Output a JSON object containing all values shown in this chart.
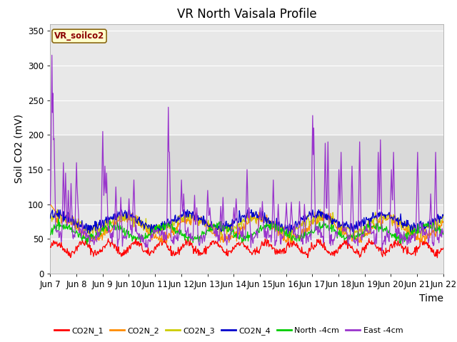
{
  "title": "VR North Vaisala Profile",
  "ylabel": "Soil CO2 (mV)",
  "xlabel": "Time",
  "annotation_text": "VR_soilco2",
  "ylim": [
    0,
    360
  ],
  "yticks": [
    0,
    50,
    100,
    150,
    200,
    250,
    300,
    350
  ],
  "x_labels": [
    "Jun 7",
    "Jun 8",
    "Jun 9",
    "Jun 10",
    "Jun 11",
    "Jun 12",
    "Jun 13",
    "Jun 14",
    "Jun 15",
    "Jun 16",
    "Jun 17",
    "Jun 18",
    "Jun 19",
    "Jun 20",
    "Jun 21",
    "Jun 22"
  ],
  "series_colors": {
    "CO2N_1": "#ff0000",
    "CO2N_2": "#ff8c00",
    "CO2N_3": "#cccc00",
    "CO2N_4": "#0000cc",
    "North_4cm": "#00cc00",
    "East_4cm": "#9933cc"
  },
  "legend_labels": [
    "CO2N_1",
    "CO2N_2",
    "CO2N_3",
    "CO2N_4",
    "North -4cm",
    "East -4cm"
  ],
  "background_color": "#ffffff",
  "plot_bg_color": "#e8e8e8",
  "shaded_band": [
    100,
    200
  ],
  "grid_color": "#ffffff",
  "title_fontsize": 12,
  "axis_fontsize": 10,
  "tick_fontsize": 8.5,
  "figsize": [
    6.4,
    4.8
  ],
  "dpi": 100
}
